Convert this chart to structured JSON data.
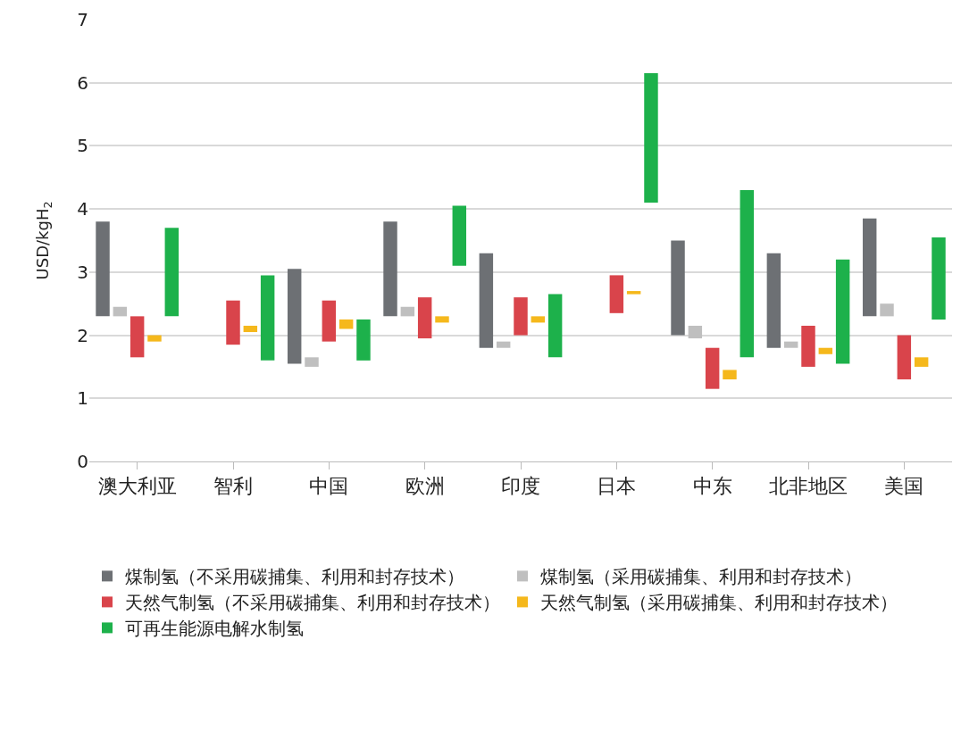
{
  "chart_data": {
    "type": "bar",
    "ylabel": "USD/kgH$_{2}$",
    "categories": [
      "澳大利亚",
      "智利",
      "中国",
      "欧洲",
      "印度",
      "日本",
      "中东",
      "北非地区",
      "美国"
    ],
    "ylim": [
      0,
      7
    ],
    "yticks": [
      0,
      1,
      2,
      3,
      4,
      5,
      6,
      7
    ],
    "grid": "y",
    "legend": "bottom",
    "series": [
      {
        "name": "煤制氢（不采用碳捕集、利用和封存技术）",
        "color": "#6d7074",
        "base": [
          2.3,
          null,
          1.55,
          2.3,
          1.8,
          null,
          2.0,
          1.8,
          2.3
        ],
        "values": [
          1.5,
          null,
          1.5,
          1.5,
          1.5,
          null,
          1.5,
          1.5,
          1.55
        ]
      },
      {
        "name": "煤制氢（采用碳捕集、利用和封存技术）",
        "color": "#bfbfbf",
        "base": [
          2.3,
          null,
          1.5,
          2.3,
          1.8,
          null,
          1.95,
          1.8,
          2.3
        ],
        "values": [
          0.15,
          null,
          0.15,
          0.15,
          0.1,
          null,
          0.2,
          0.1,
          0.2
        ]
      },
      {
        "name": "天然气制氢（不采用碳捕集、利用和封存技术）",
        "color": "#d9444b",
        "base": [
          1.65,
          1.85,
          1.9,
          1.95,
          2.0,
          2.35,
          1.15,
          1.5,
          1.3
        ],
        "values": [
          0.65,
          0.7,
          0.65,
          0.65,
          0.6,
          0.6,
          0.65,
          0.65,
          0.7
        ]
      },
      {
        "name": "天然气制氢（采用碳捕集、利用和封存技术）",
        "color": "#f5b81c",
        "base": [
          1.9,
          2.05,
          2.1,
          2.2,
          2.2,
          2.65,
          1.3,
          1.7,
          1.5
        ],
        "values": [
          0.1,
          0.1,
          0.15,
          0.1,
          0.1,
          0.05,
          0.15,
          0.1,
          0.15
        ]
      },
      {
        "name": "可再生能源电解水制氢",
        "color": "#1db14b",
        "base": [
          2.3,
          1.6,
          1.6,
          3.1,
          1.65,
          4.1,
          1.65,
          1.55,
          2.25
        ],
        "values": [
          1.4,
          1.35,
          0.65,
          0.95,
          1.0,
          2.05,
          2.65,
          1.65,
          1.3
        ]
      }
    ]
  }
}
